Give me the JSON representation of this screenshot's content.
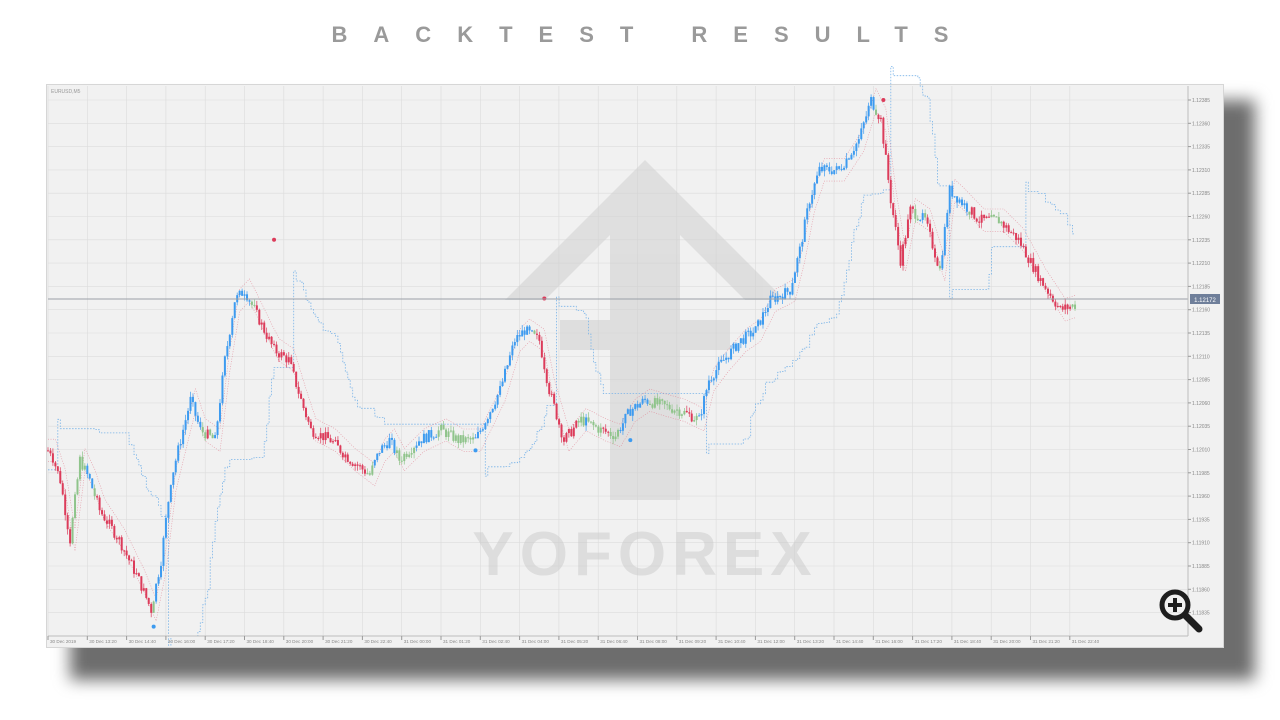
{
  "page": {
    "title": "BACKTEST RESULTS"
  },
  "watermark": {
    "text": "YOFOREX"
  },
  "chart_data": {
    "type": "candlestick",
    "symbol_label": "EURUSD,M5",
    "title": "",
    "xlabel": "",
    "ylabel": "",
    "ylim": [
      1.11835,
      1.12385
    ],
    "grid": true,
    "current_price": "1.12172",
    "y_ticks": [
      "1.12385",
      "1.12360",
      "1.12335",
      "1.12310",
      "1.12285",
      "1.12260",
      "1.12235",
      "1.12210",
      "1.12185",
      "1.12160",
      "1.12135",
      "1.12110",
      "1.12085",
      "1.12060",
      "1.12035",
      "1.12010",
      "1.11985",
      "1.11960",
      "1.11935",
      "1.11910",
      "1.11885",
      "1.11860",
      "1.11835"
    ],
    "x_ticks": [
      "30 Dec 2019",
      "30 Dec 13:20",
      "30 Dec 14:40",
      "30 Dec 16:00",
      "30 Dec 17:20",
      "30 Dec 18:40",
      "30 Dec 20:00",
      "30 Dec 21:20",
      "30 Dec 22:40",
      "31 Dec 00:00",
      "31 Dec 01:20",
      "31 Dec 02:40",
      "31 Dec 04:00",
      "31 Dec 05:20",
      "31 Dec 06:40",
      "31 Dec 08:00",
      "31 Dec 09:20",
      "31 Dec 10:40",
      "31 Dec 12:00",
      "31 Dec 13:20",
      "31 Dec 14:40",
      "31 Dec 16:00",
      "31 Dec 17:20",
      "31 Dec 18:40",
      "31 Dec 20:00",
      "31 Dec 21:20",
      "31 Dec 22:40"
    ],
    "price_path": [
      [
        "30 Dec 12:05",
        1.12009
      ],
      [
        "30 Dec 12:25",
        1.11977
      ],
      [
        "30 Dec 12:45",
        1.11913
      ],
      [
        "30 Dec 13:05",
        1.11999
      ],
      [
        "30 Dec 13:25",
        1.11977
      ],
      [
        "30 Dec 13:45",
        1.11945
      ],
      [
        "30 Dec 14:25",
        1.11913
      ],
      [
        "30 Dec 15:05",
        1.1187
      ],
      [
        "30 Dec 15:30",
        1.11838
      ],
      [
        "30 Dec 15:50",
        1.11891
      ],
      [
        "30 Dec 16:10",
        1.11977
      ],
      [
        "30 Dec 16:40",
        1.12042
      ],
      [
        "30 Dec 16:50",
        1.12063
      ],
      [
        "30 Dec 17:10",
        1.12031
      ],
      [
        "30 Dec 17:40",
        1.1202
      ],
      [
        "30 Dec 18:00",
        1.12106
      ],
      [
        "30 Dec 18:20",
        1.1217
      ],
      [
        "30 Dec 18:40",
        1.12181
      ],
      [
        "30 Dec 19:00",
        1.1216
      ],
      [
        "30 Dec 19:20",
        1.12138
      ],
      [
        "30 Dec 19:40",
        1.12117
      ],
      [
        "30 Dec 20:10",
        1.12106
      ],
      [
        "30 Dec 20:35",
        1.12063
      ],
      [
        "30 Dec 20:55",
        1.12031
      ],
      [
        "30 Dec 21:35",
        1.1202
      ],
      [
        "30 Dec 22:15",
        1.11999
      ],
      [
        "30 Dec 22:55",
        1.11983
      ],
      [
        "30 Dec 23:15",
        1.12009
      ],
      [
        "30 Dec 23:35",
        1.1202
      ],
      [
        "30 Dec 23:55",
        1.11999
      ],
      [
        "31 Dec 00:35",
        1.1202
      ],
      [
        "31 Dec 01:20",
        1.12031
      ],
      [
        "31 Dec 01:55",
        1.1202
      ],
      [
        "31 Dec 02:30",
        1.1202
      ],
      [
        "31 Dec 03:00",
        1.12052
      ],
      [
        "31 Dec 03:20",
        1.12074
      ],
      [
        "31 Dec 03:50",
        1.12127
      ],
      [
        "31 Dec 04:10",
        1.12138
      ],
      [
        "31 Dec 04:40",
        1.12127
      ],
      [
        "31 Dec 05:00",
        1.12074
      ],
      [
        "31 Dec 05:30",
        1.1202
      ],
      [
        "31 Dec 06:05",
        1.12042
      ],
      [
        "31 Dec 06:45",
        1.12031
      ],
      [
        "31 Dec 07:15",
        1.12025
      ],
      [
        "31 Dec 07:45",
        1.12052
      ],
      [
        "31 Dec 08:15",
        1.12063
      ],
      [
        "31 Dec 08:45",
        1.12058
      ],
      [
        "31 Dec 09:25",
        1.12052
      ],
      [
        "31 Dec 10:05",
        1.12042
      ],
      [
        "31 Dec 10:25",
        1.12085
      ],
      [
        "31 Dec 10:55",
        1.12106
      ],
      [
        "31 Dec 11:30",
        1.12127
      ],
      [
        "31 Dec 12:00",
        1.12138
      ],
      [
        "31 Dec 12:30",
        1.1217
      ],
      [
        "31 Dec 13:10",
        1.12181
      ],
      [
        "31 Dec 13:30",
        1.12224
      ],
      [
        "31 Dec 13:50",
        1.12278
      ],
      [
        "31 Dec 14:10",
        1.1231
      ],
      [
        "31 Dec 14:50",
        1.1231
      ],
      [
        "31 Dec 15:30",
        1.12342
      ],
      [
        "31 Dec 15:55",
        1.12385
      ],
      [
        "31 Dec 16:15",
        1.12364
      ],
      [
        "31 Dec 16:35",
        1.12278
      ],
      [
        "31 Dec 16:55",
        1.12213
      ],
      [
        "31 Dec 17:15",
        1.12267
      ],
      [
        "31 Dec 17:45",
        1.12256
      ],
      [
        "31 Dec 18:15",
        1.12203
      ],
      [
        "31 Dec 18:35",
        1.12288
      ],
      [
        "31 Dec 18:55",
        1.12278
      ],
      [
        "31 Dec 19:35",
        1.12256
      ],
      [
        "31 Dec 20:15",
        1.12256
      ],
      [
        "31 Dec 20:55",
        1.12235
      ],
      [
        "31 Dec 21:40",
        1.12192
      ],
      [
        "31 Dec 22:20",
        1.1216
      ],
      [
        "31 Dec 22:50",
        1.12165
      ]
    ],
    "signals": {
      "sell": [
        [
          "30 Dec 19:40",
          1.12235
        ],
        [
          "31 Dec 04:50",
          1.12172
        ],
        [
          "31 Dec 16:20",
          1.12385
        ]
      ],
      "buy": [
        [
          "30 Dec 15:35",
          1.1182
        ],
        [
          "31 Dec 02:30",
          1.12009
        ],
        [
          "31 Dec 07:45",
          1.1202
        ]
      ]
    },
    "colors": {
      "up_trend": "#3d9bf0",
      "down_trend": "#dc3b5a",
      "pullback": "#8fc48b",
      "stop_line": "#7ab4e8",
      "band": "#e07a8c",
      "grid": "#dcdcdc",
      "background": "#f1f1f1"
    }
  }
}
